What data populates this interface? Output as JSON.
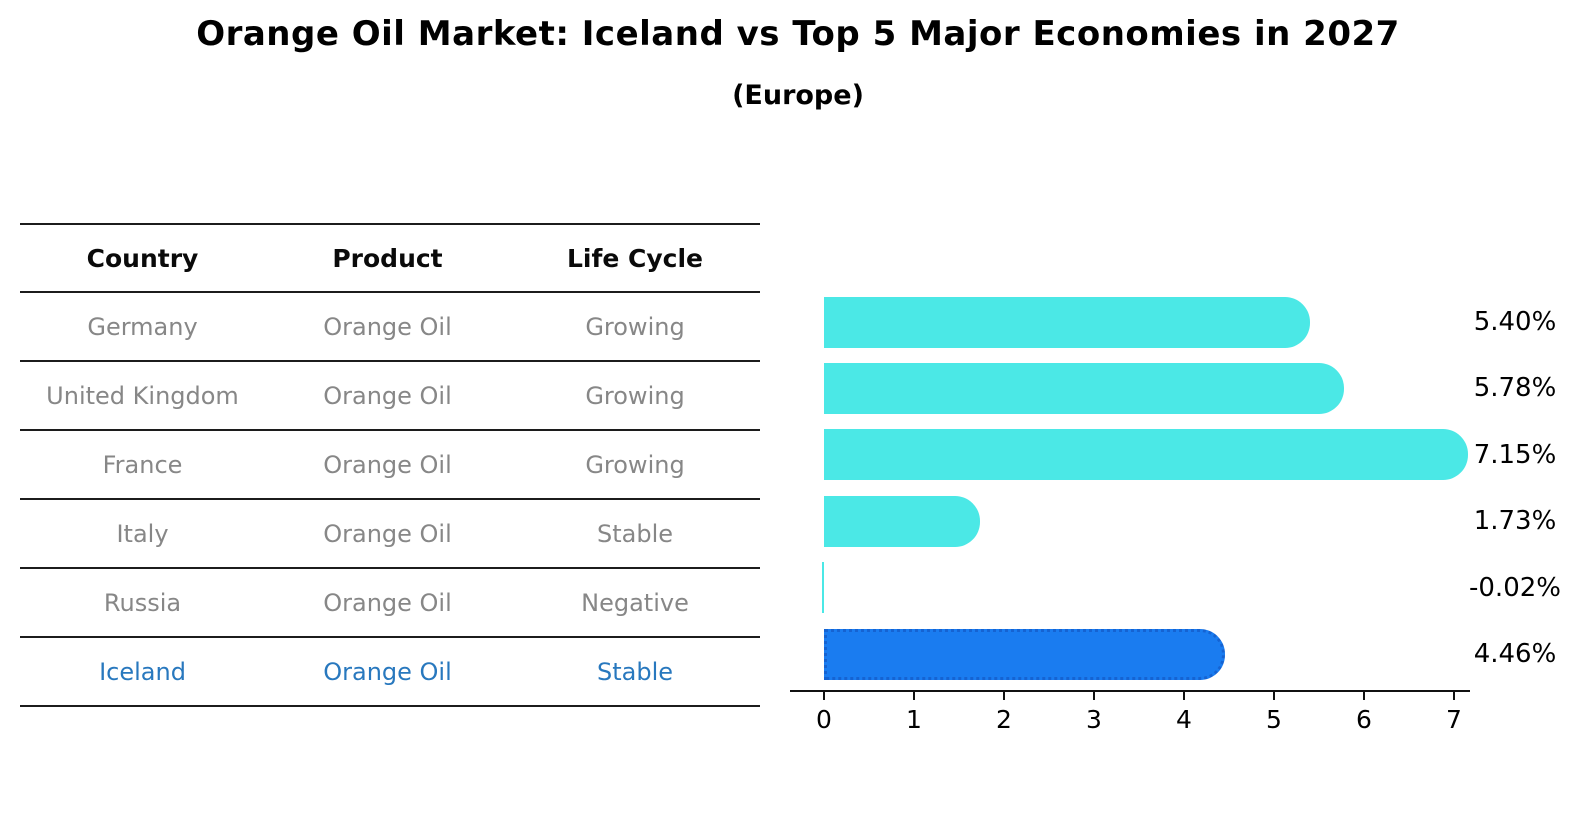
{
  "title": "Orange Oil Market: Iceland vs Top 5 Major Economies in 2027",
  "subtitle": "(Europe)",
  "table": {
    "headers": [
      "Country",
      "Product",
      "Life Cycle"
    ],
    "rows": [
      {
        "country": "Germany",
        "product": "Orange Oil",
        "life_cycle": "Growing",
        "highlighted": false
      },
      {
        "country": "United Kingdom",
        "product": "Orange Oil",
        "life_cycle": "Growing",
        "highlighted": false
      },
      {
        "country": "France",
        "product": "Orange Oil",
        "life_cycle": "Growing",
        "highlighted": false
      },
      {
        "country": "Italy",
        "product": "Orange Oil",
        "life_cycle": "Stable",
        "highlighted": false
      },
      {
        "country": "Russia",
        "product": "Orange Oil",
        "life_cycle": "Negative",
        "highlighted": false
      },
      {
        "country": "Iceland",
        "product": "Orange Oil",
        "life_cycle": "Stable",
        "highlighted": true
      }
    ]
  },
  "chart_data": {
    "type": "bar",
    "orientation": "horizontal",
    "categories": [
      "Germany",
      "United Kingdom",
      "France",
      "Italy",
      "Russia",
      "Iceland"
    ],
    "values": [
      5.4,
      5.78,
      7.15,
      1.73,
      -0.02,
      4.46
    ],
    "value_labels": [
      "5.40%",
      "5.78%",
      "7.15%",
      "1.73%",
      "-0.02%",
      "4.46%"
    ],
    "xticks": [
      "0",
      "1",
      "2",
      "3",
      "4",
      "5",
      "6",
      "7"
    ],
    "xlim": [
      -0.38,
      7.5
    ],
    "grid": false,
    "legend": false,
    "highlight_index": 5,
    "bar_color": "#4BE8E6",
    "highlight_color": "#1A7CF0",
    "highlight_border_color": "#1563D2",
    "axis_color": "#111111",
    "label_color": "#000000"
  },
  "colors": {
    "background": "#ffffff",
    "table_line": "#1c1c1c",
    "table_text": "#878787",
    "table_header_text": "#0a0a0a",
    "highlight_text": "#2878be"
  }
}
